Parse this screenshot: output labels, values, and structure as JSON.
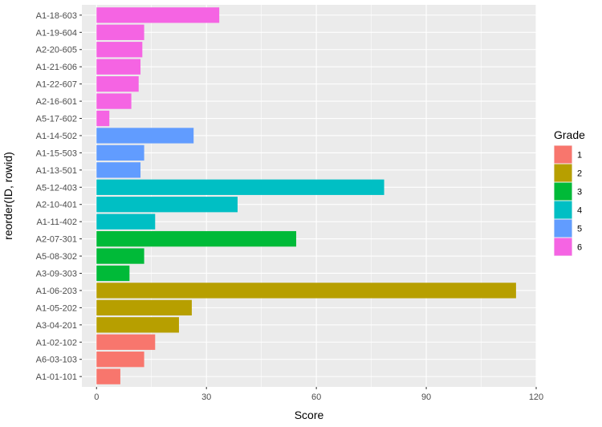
{
  "chart_data": {
    "type": "bar",
    "orientation": "horizontal",
    "xlabel": "Score",
    "ylabel": "reorder(ID, rowid)",
    "xlim": [
      -4,
      120
    ],
    "x_ticks": [
      0,
      30,
      60,
      90,
      120
    ],
    "grid": true,
    "legend": {
      "title": "Grade",
      "placement": "right",
      "entries": [
        {
          "label": "1",
          "color": "#F8766D"
        },
        {
          "label": "2",
          "color": "#B79F00"
        },
        {
          "label": "3",
          "color": "#00BA38"
        },
        {
          "label": "4",
          "color": "#00BFC4"
        },
        {
          "label": "5",
          "color": "#619CFF"
        },
        {
          "label": "6",
          "color": "#F564E3"
        }
      ]
    },
    "bars": [
      {
        "id": "A1-18-603",
        "grade": "6",
        "value": 33.5
      },
      {
        "id": "A1-19-604",
        "grade": "6",
        "value": 13
      },
      {
        "id": "A2-20-605",
        "grade": "6",
        "value": 12.5
      },
      {
        "id": "A1-21-606",
        "grade": "6",
        "value": 12
      },
      {
        "id": "A1-22-607",
        "grade": "6",
        "value": 11.5
      },
      {
        "id": "A2-16-601",
        "grade": "6",
        "value": 9.5
      },
      {
        "id": "A5-17-602",
        "grade": "6",
        "value": 3.5
      },
      {
        "id": "A1-14-502",
        "grade": "5",
        "value": 26.5
      },
      {
        "id": "A1-15-503",
        "grade": "5",
        "value": 13
      },
      {
        "id": "A1-13-501",
        "grade": "5",
        "value": 12
      },
      {
        "id": "A5-12-403",
        "grade": "4",
        "value": 78.5
      },
      {
        "id": "A2-10-401",
        "grade": "4",
        "value": 38.5
      },
      {
        "id": "A1-11-402",
        "grade": "4",
        "value": 16
      },
      {
        "id": "A2-07-301",
        "grade": "3",
        "value": 54.5
      },
      {
        "id": "A5-08-302",
        "grade": "3",
        "value": 13
      },
      {
        "id": "A3-09-303",
        "grade": "3",
        "value": 9
      },
      {
        "id": "A1-06-203",
        "grade": "2",
        "value": 114.5
      },
      {
        "id": "A1-05-202",
        "grade": "2",
        "value": 26
      },
      {
        "id": "A3-04-201",
        "grade": "2",
        "value": 22.5
      },
      {
        "id": "A1-02-102",
        "grade": "1",
        "value": 16
      },
      {
        "id": "A6-03-103",
        "grade": "1",
        "value": 13
      },
      {
        "id": "A1-01-101",
        "grade": "1",
        "value": 6.5
      }
    ],
    "panel_background": "#EBEBEB",
    "gridline_color": "#FFFFFF"
  }
}
